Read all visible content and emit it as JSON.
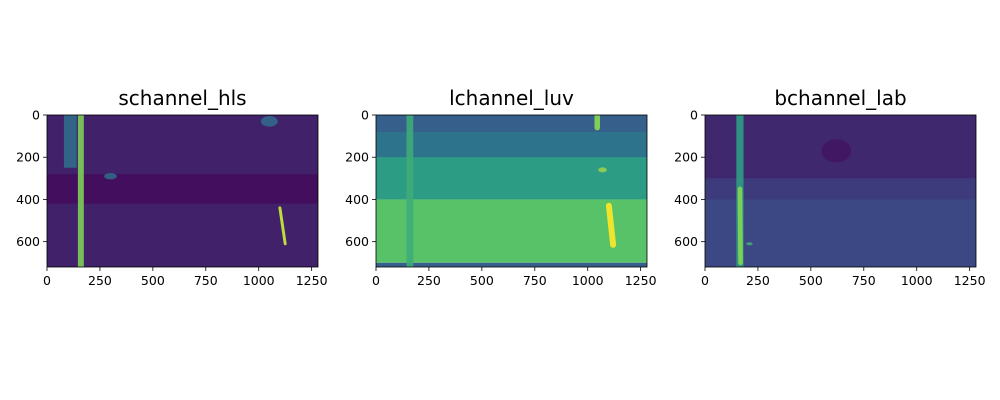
{
  "chart_data": [
    {
      "type": "heatmap",
      "title": "schannel_hls",
      "colormap": "viridis",
      "xlim": [
        0,
        1280
      ],
      "ylim": [
        720,
        0
      ],
      "xticks": [
        0,
        250,
        500,
        750,
        1000,
        1250
      ],
      "yticks": [
        0,
        200,
        400,
        600
      ],
      "features": [
        {
          "kind": "band",
          "y": [
            0,
            720
          ],
          "level": 0.1
        },
        {
          "kind": "band",
          "y": [
            280,
            420
          ],
          "level": 0.04
        },
        {
          "kind": "vline",
          "x": 160,
          "y": [
            0,
            720
          ],
          "width": 28,
          "level": 0.8
        },
        {
          "kind": "vline",
          "x": 110,
          "y": [
            0,
            250
          ],
          "width": 60,
          "level": 0.35
        },
        {
          "kind": "seg",
          "x0": 1100,
          "y0": 440,
          "x1": 1125,
          "y1": 610,
          "width": 14,
          "level": 0.9
        },
        {
          "kind": "blob",
          "x": 1050,
          "y": 30,
          "w": 80,
          "h": 50,
          "level": 0.35
        },
        {
          "kind": "blob",
          "x": 300,
          "y": 290,
          "w": 60,
          "h": 30,
          "level": 0.35
        }
      ]
    },
    {
      "type": "heatmap",
      "title": "lchannel_luv",
      "colormap": "viridis",
      "xlim": [
        0,
        1280
      ],
      "ylim": [
        720,
        0
      ],
      "xticks": [
        0,
        250,
        500,
        750,
        1000,
        1250
      ],
      "yticks": [
        0,
        200,
        400,
        600
      ],
      "features": [
        {
          "kind": "band",
          "y": [
            0,
            220
          ],
          "level": 0.38
        },
        {
          "kind": "band",
          "y": [
            0,
            80
          ],
          "level": 0.3
        },
        {
          "kind": "band",
          "y": [
            200,
            400
          ],
          "level": 0.55
        },
        {
          "kind": "band",
          "y": [
            400,
            700
          ],
          "level": 0.72
        },
        {
          "kind": "band",
          "y": [
            700,
            720
          ],
          "level": 0.3
        },
        {
          "kind": "vline",
          "x": 160,
          "y": [
            0,
            720
          ],
          "width": 32,
          "level": 0.62
        },
        {
          "kind": "seg",
          "x0": 1100,
          "y0": 430,
          "x1": 1120,
          "y1": 615,
          "width": 28,
          "level": 0.98
        },
        {
          "kind": "seg",
          "x0": 1045,
          "y0": 0,
          "x1": 1045,
          "y1": 60,
          "width": 26,
          "level": 0.8
        },
        {
          "kind": "blob",
          "x": 1070,
          "y": 260,
          "w": 40,
          "h": 24,
          "level": 0.85
        }
      ]
    },
    {
      "type": "heatmap",
      "title": "bchannel_lab",
      "colormap": "viridis",
      "xlim": [
        0,
        1280
      ],
      "ylim": [
        720,
        0
      ],
      "xticks": [
        0,
        250,
        500,
        750,
        1000,
        1250
      ],
      "yticks": [
        0,
        200,
        400,
        600
      ],
      "features": [
        {
          "kind": "band",
          "y": [
            0,
            720
          ],
          "level": 0.18
        },
        {
          "kind": "band",
          "y": [
            0,
            300
          ],
          "level": 0.12
        },
        {
          "kind": "band",
          "y": [
            400,
            720
          ],
          "level": 0.22
        },
        {
          "kind": "blob",
          "x": 620,
          "y": 170,
          "w": 140,
          "h": 110,
          "level": 0.06
        },
        {
          "kind": "vline",
          "x": 165,
          "y": [
            0,
            720
          ],
          "width": 34,
          "level": 0.55
        },
        {
          "kind": "seg",
          "x0": 165,
          "y0": 350,
          "x1": 168,
          "y1": 700,
          "width": 22,
          "level": 0.8
        },
        {
          "kind": "blob",
          "x": 210,
          "y": 610,
          "w": 30,
          "h": 14,
          "level": 0.65
        }
      ]
    }
  ]
}
